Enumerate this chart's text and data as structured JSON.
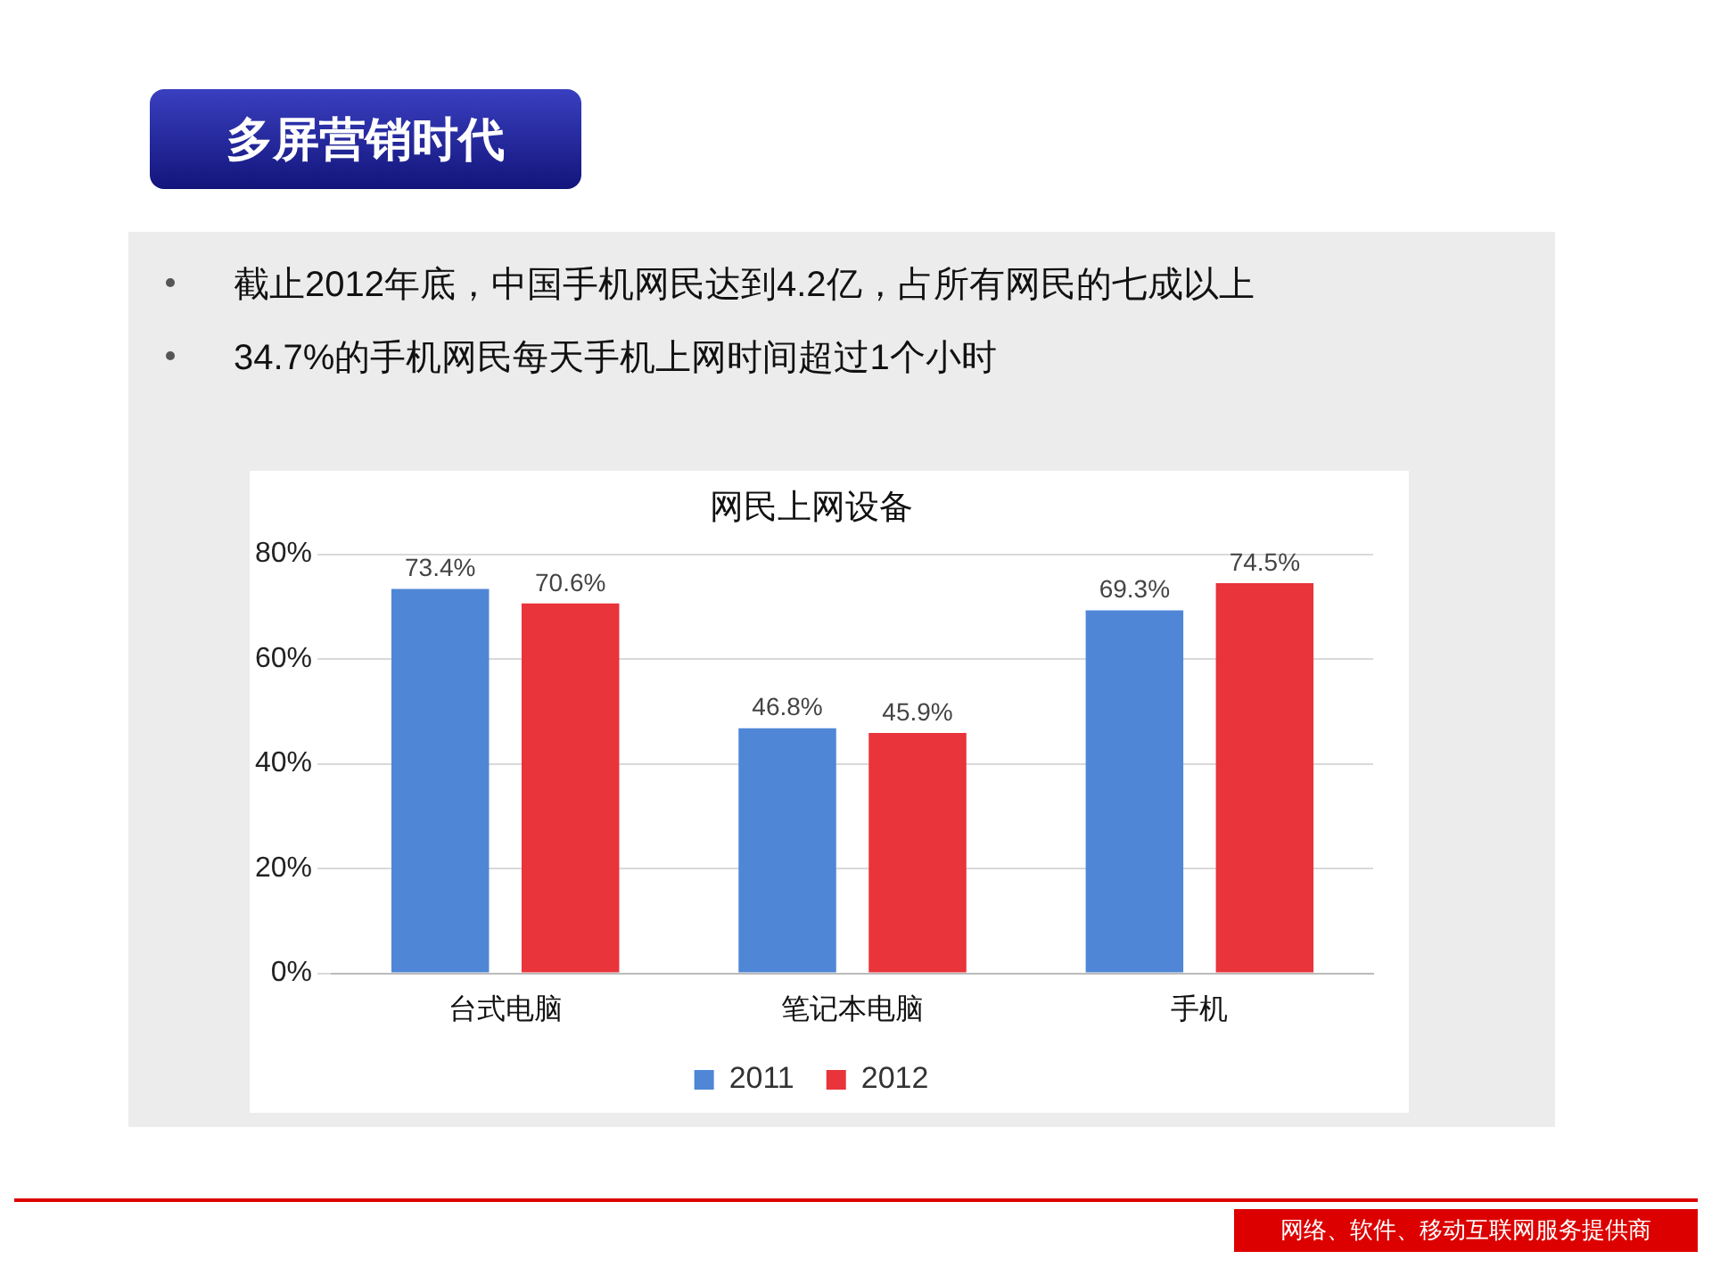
{
  "chart_data": {
    "type": "bar",
    "title": "网民上网设备",
    "annotations": [
      "多屏营销时代",
      "截止2012年底，中国手机网民达到4.2亿，占所有网民的七成以上",
      "34.7%的手机网民每天手机上网时间超过1个小时",
      "网络、软件、移动互联网服务提供商"
    ],
    "categories": [
      "台式电脑",
      "笔记本电脑",
      "手机"
    ],
    "series": [
      {
        "name": "2011",
        "color": "#4f86d6",
        "values": [
          73.4,
          46.8,
          69.3
        ],
        "value_labels": [
          "73.4%",
          "46.8%",
          "69.3%"
        ]
      },
      {
        "name": "2012",
        "color": "#e8343a",
        "values": [
          70.6,
          45.9,
          74.5
        ],
        "value_labels": [
          "70.6%",
          "45.9%",
          "74.5%"
        ]
      }
    ],
    "ylim": [
      0,
      80
    ],
    "yticks": [
      {
        "value": 0,
        "label": "0%"
      },
      {
        "value": 20,
        "label": "20%"
      },
      {
        "value": 40,
        "label": "40%"
      },
      {
        "value": 60,
        "label": "60%"
      },
      {
        "value": 80,
        "label": "80%"
      }
    ],
    "grid": "y",
    "legend": "bottom"
  }
}
